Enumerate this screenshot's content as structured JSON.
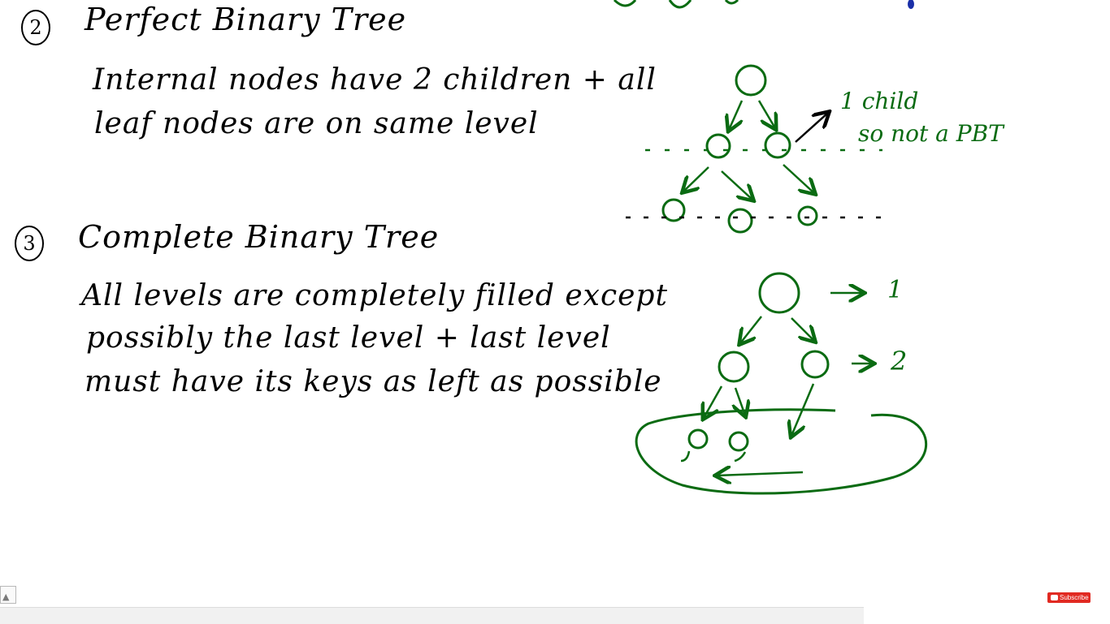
{
  "section2": {
    "number": "2",
    "title": "Perfect Binary Tree",
    "line1": "Internal nodes have 2 children + all",
    "line2": "leaf nodes are on same level"
  },
  "section3": {
    "number": "3",
    "title": "Complete Binary Tree",
    "line1": "All levels are completely filled except",
    "line2": "possibly the last level + last level",
    "line3": "must have its keys as left as possible"
  },
  "tree1": {
    "note_line1": "1 child",
    "note_line2": "so not a PBT"
  },
  "tree2": {
    "level1_label": "1",
    "level2_label": "2"
  },
  "overlay": {
    "subscribe_label": "Subscribe"
  },
  "colors": {
    "ink": "#000000",
    "green": "#0a6b12",
    "subscribe_red": "#e12a22"
  }
}
